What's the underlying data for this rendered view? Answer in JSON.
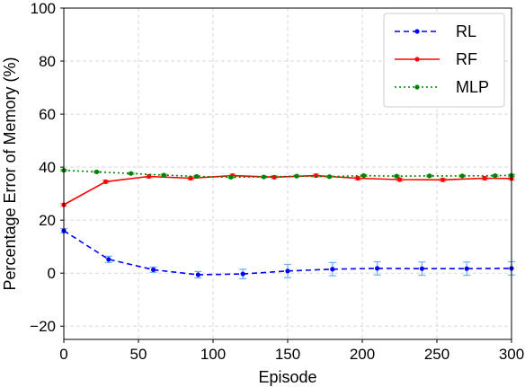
{
  "chart_data": {
    "type": "line",
    "title": "",
    "xlabel": "Episode",
    "ylabel": "Percentage Error of Memory (%)",
    "xlim": [
      0,
      300
    ],
    "ylim": [
      -25,
      100
    ],
    "xticks": [
      0,
      50,
      100,
      150,
      200,
      250,
      300
    ],
    "yticks": [
      -20,
      0,
      20,
      40,
      60,
      80,
      100
    ],
    "grid": true,
    "legend_position": "top-right",
    "series": [
      {
        "name": "RL",
        "color": "#0000ff",
        "errorbar_color": "#66b2ff",
        "linestyle": "dashed",
        "x": [
          0,
          30,
          60,
          90,
          120,
          150,
          180,
          210,
          240,
          270,
          300
        ],
        "y": [
          16,
          5.2,
          1.3,
          -0.6,
          -0.3,
          0.8,
          1.5,
          1.8,
          1.7,
          1.7,
          1.8
        ],
        "err": [
          0.8,
          1.2,
          1.0,
          1.2,
          1.8,
          2.5,
          2.5,
          2.5,
          2.5,
          2.5,
          2.5
        ]
      },
      {
        "name": "RF",
        "color": "#ff0000",
        "errorbar_color": "#ff9999",
        "linestyle": "solid",
        "x": [
          0,
          28,
          57,
          85,
          113,
          141,
          169,
          197,
          225,
          254,
          282,
          300
        ],
        "y": [
          25.8,
          34.5,
          36.5,
          35.8,
          36.8,
          36.2,
          36.8,
          35.8,
          35.3,
          35.2,
          35.8,
          35.7
        ],
        "err": [
          0.5,
          0.6,
          0.6,
          0.6,
          0.6,
          0.6,
          0.6,
          0.6,
          0.6,
          0.6,
          0.6,
          0.6
        ]
      },
      {
        "name": "MLP",
        "color": "#008000",
        "errorbar_color": "#66bb66",
        "linestyle": "dotted",
        "x": [
          0,
          22,
          45,
          67,
          89,
          112,
          134,
          156,
          178,
          201,
          223,
          245,
          267,
          289,
          300
        ],
        "y": [
          38.8,
          38.2,
          37.6,
          37.0,
          36.5,
          36.2,
          36.3,
          36.6,
          36.4,
          36.8,
          36.6,
          36.7,
          36.7,
          36.8,
          36.9
        ],
        "err": [
          0.3,
          0.3,
          0.3,
          0.3,
          0.3,
          0.3,
          0.3,
          0.3,
          0.3,
          0.3,
          0.3,
          0.3,
          0.3,
          0.3,
          0.3
        ]
      }
    ]
  }
}
